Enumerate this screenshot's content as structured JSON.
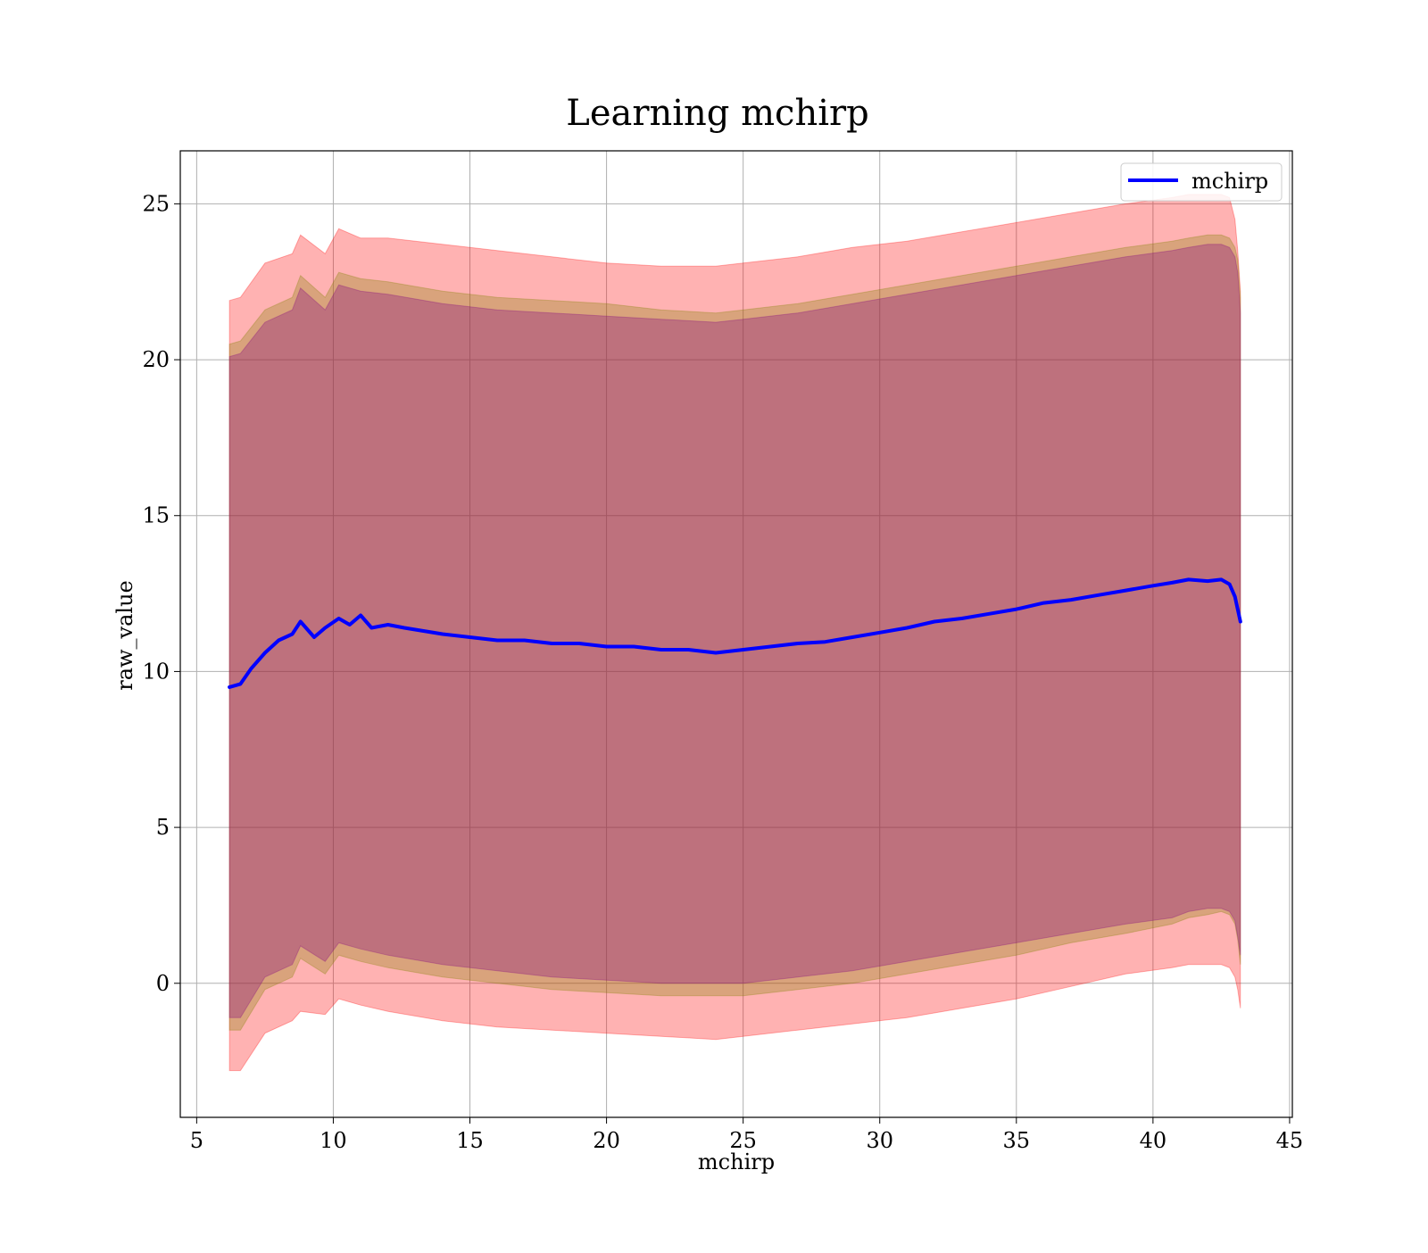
{
  "chart_data": {
    "type": "line",
    "title": "Learning mchirp",
    "xlabel": "mchirp",
    "ylabel": "raw_value",
    "xlim": [
      4.4,
      45.1
    ],
    "ylim": [
      -4.3,
      26.7
    ],
    "xticks": [
      5,
      10,
      15,
      20,
      25,
      30,
      35,
      40,
      45
    ],
    "yticks": [
      0,
      5,
      10,
      15,
      20,
      25
    ],
    "grid": true,
    "legend_position": "top-right",
    "series": [
      {
        "name": "mchirp",
        "color": "#0000ff",
        "x": [
          6.2,
          6.6,
          7.0,
          7.5,
          8.0,
          8.5,
          8.8,
          9.3,
          9.7,
          10.2,
          10.6,
          11.0,
          11.4,
          12.0,
          12.6,
          13.3,
          14.0,
          15.0,
          16.0,
          17.0,
          18.0,
          19.0,
          20.0,
          21.0,
          22.0,
          23.0,
          24.0,
          25.0,
          26.0,
          27.0,
          28.0,
          29.0,
          30.0,
          31.0,
          32.0,
          33.0,
          34.0,
          35.0,
          36.0,
          37.0,
          38.0,
          39.0,
          40.0,
          40.7,
          41.3,
          42.0,
          42.5,
          42.8,
          43.0,
          43.2
        ],
        "y": [
          9.5,
          9.6,
          10.1,
          10.6,
          11.0,
          11.2,
          11.6,
          11.1,
          11.4,
          11.7,
          11.5,
          11.8,
          11.4,
          11.5,
          11.4,
          11.3,
          11.2,
          11.1,
          11.0,
          11.0,
          10.9,
          10.9,
          10.8,
          10.8,
          10.7,
          10.7,
          10.6,
          10.7,
          10.8,
          10.9,
          10.95,
          11.1,
          11.25,
          11.4,
          11.6,
          11.7,
          11.85,
          12.0,
          12.2,
          12.3,
          12.45,
          12.6,
          12.75,
          12.85,
          12.95,
          12.9,
          12.95,
          12.8,
          12.4,
          11.6
        ]
      }
    ],
    "bands": [
      {
        "color": "#ff0000",
        "opacity": 0.3,
        "x": [
          6.2,
          6.6,
          7.5,
          8.5,
          8.8,
          9.7,
          10.2,
          11.0,
          12.0,
          14.0,
          16.0,
          18.0,
          20.0,
          22.0,
          24.0,
          25.0,
          27.0,
          29.0,
          31.0,
          33.0,
          35.0,
          37.0,
          39.0,
          40.7,
          41.3,
          42.0,
          42.5,
          42.8,
          43.0,
          43.1,
          43.2
        ],
        "upper": [
          21.9,
          22.0,
          23.1,
          23.4,
          24.0,
          23.4,
          24.2,
          23.9,
          23.9,
          23.7,
          23.5,
          23.3,
          23.1,
          23.0,
          23.0,
          23.1,
          23.3,
          23.6,
          23.8,
          24.1,
          24.4,
          24.7,
          25.0,
          25.2,
          25.3,
          25.3,
          25.3,
          25.2,
          24.5,
          23.5,
          22.2
        ],
        "lower": [
          -2.8,
          -2.8,
          -1.6,
          -1.2,
          -0.9,
          -1.0,
          -0.5,
          -0.7,
          -0.9,
          -1.2,
          -1.4,
          -1.5,
          -1.6,
          -1.7,
          -1.8,
          -1.7,
          -1.5,
          -1.3,
          -1.1,
          -0.8,
          -0.5,
          -0.1,
          0.3,
          0.5,
          0.6,
          0.6,
          0.6,
          0.5,
          0.2,
          -0.2,
          -0.8
        ]
      },
      {
        "color": "#808000",
        "opacity": 0.3,
        "x": [
          6.2,
          6.6,
          7.5,
          8.5,
          8.8,
          9.7,
          10.2,
          11.0,
          12.0,
          14.0,
          16.0,
          18.0,
          20.0,
          22.0,
          24.0,
          25.0,
          27.0,
          29.0,
          31.0,
          33.0,
          35.0,
          37.0,
          39.0,
          40.7,
          41.3,
          42.0,
          42.5,
          42.8,
          43.0,
          43.1,
          43.2
        ],
        "upper": [
          20.5,
          20.6,
          21.6,
          22.0,
          22.7,
          22.0,
          22.8,
          22.6,
          22.5,
          22.2,
          22.0,
          21.9,
          21.8,
          21.6,
          21.5,
          21.6,
          21.8,
          22.1,
          22.4,
          22.7,
          23.0,
          23.3,
          23.6,
          23.8,
          23.9,
          24.0,
          24.0,
          23.9,
          23.6,
          23.2,
          22.0
        ],
        "lower": [
          -1.5,
          -1.5,
          -0.2,
          0.2,
          0.8,
          0.3,
          0.9,
          0.7,
          0.5,
          0.2,
          0.0,
          -0.2,
          -0.3,
          -0.4,
          -0.4,
          -0.4,
          -0.2,
          0.0,
          0.3,
          0.6,
          0.9,
          1.3,
          1.6,
          1.9,
          2.1,
          2.2,
          2.3,
          2.2,
          1.9,
          1.4,
          0.6
        ]
      },
      {
        "color": "#800080",
        "opacity": 0.3,
        "x": [
          6.2,
          6.6,
          7.5,
          8.5,
          8.8,
          9.7,
          10.2,
          11.0,
          12.0,
          14.0,
          16.0,
          18.0,
          20.0,
          22.0,
          24.0,
          25.0,
          27.0,
          29.0,
          31.0,
          33.0,
          35.0,
          37.0,
          39.0,
          40.7,
          41.3,
          42.0,
          42.5,
          42.8,
          43.0,
          43.1,
          43.2
        ],
        "upper": [
          20.1,
          20.2,
          21.2,
          21.6,
          22.3,
          21.6,
          22.4,
          22.2,
          22.1,
          21.8,
          21.6,
          21.5,
          21.4,
          21.3,
          21.2,
          21.3,
          21.5,
          21.8,
          22.1,
          22.4,
          22.7,
          23.0,
          23.3,
          23.5,
          23.6,
          23.7,
          23.7,
          23.6,
          23.3,
          22.8,
          21.5
        ],
        "lower": [
          -1.1,
          -1.1,
          0.2,
          0.6,
          1.2,
          0.7,
          1.3,
          1.1,
          0.9,
          0.6,
          0.4,
          0.2,
          0.1,
          0.0,
          0.0,
          0.0,
          0.2,
          0.4,
          0.7,
          1.0,
          1.3,
          1.6,
          1.9,
          2.1,
          2.3,
          2.4,
          2.4,
          2.3,
          2.0,
          1.5,
          0.9
        ]
      }
    ]
  }
}
